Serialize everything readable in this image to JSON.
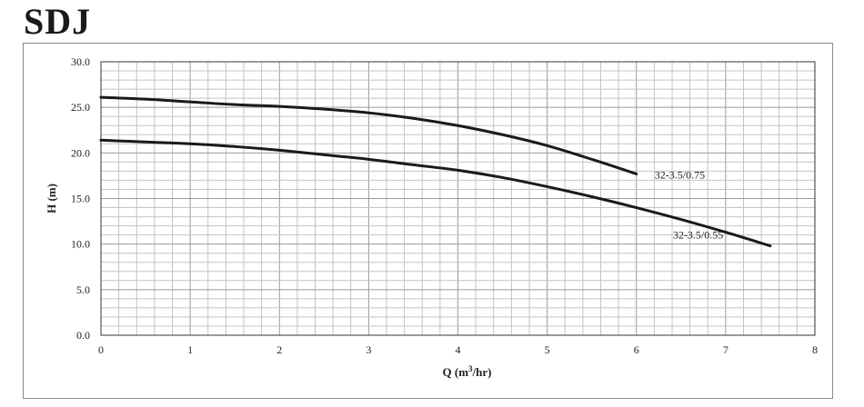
{
  "page": {
    "title": "SDJ"
  },
  "chart_data": {
    "type": "line",
    "title": "",
    "xlabel": "Q (m",
    "xlabel_sup": "3",
    "xlabel_tail": "/hr)",
    "ylabel": "H (m)",
    "xlim": [
      0,
      8
    ],
    "ylim": [
      0,
      30
    ],
    "x_ticks": [
      "0",
      "1",
      "2",
      "3",
      "4",
      "5",
      "6",
      "7",
      "8"
    ],
    "y_ticks": [
      "0.0",
      "5.0",
      "10.0",
      "15.0",
      "20.0",
      "25.0",
      "30.0"
    ],
    "grid": true,
    "series": [
      {
        "name": "32-3.5/0.75",
        "x": [
          0,
          0.5,
          1,
          1.5,
          2,
          2.5,
          3,
          3.5,
          4,
          4.5,
          5,
          5.5,
          6
        ],
        "y": [
          26.1,
          25.9,
          25.6,
          25.3,
          25.1,
          24.8,
          24.4,
          23.8,
          23.0,
          22.0,
          20.8,
          19.3,
          17.7
        ]
      },
      {
        "name": "32-3.5/0.55",
        "x": [
          0,
          0.5,
          1,
          1.5,
          2,
          2.5,
          3,
          3.5,
          4,
          4.5,
          5,
          5.5,
          6,
          6.5,
          7,
          7.5
        ],
        "y": [
          21.4,
          21.2,
          21.0,
          20.7,
          20.3,
          19.8,
          19.3,
          18.7,
          18.1,
          17.3,
          16.3,
          15.2,
          14.0,
          12.7,
          11.3,
          9.8
        ]
      }
    ]
  }
}
